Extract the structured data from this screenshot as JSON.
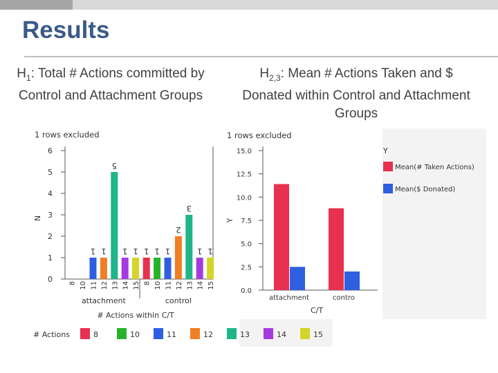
{
  "slide": {
    "title": "Results",
    "heading_left": {
      "h": "H",
      "sub": "1",
      "text": ": Total # Actions committed by Control and Attachment Groups"
    },
    "heading_right": {
      "h": "H",
      "sub": "2,3",
      "text": ": Mean # Actions Taken and $ Donated  within Control and Attachment Groups"
    }
  },
  "chart_data": [
    {
      "type": "bar",
      "note_label": "1 rows excluded",
      "ylabel": "N",
      "xlabel": "# Actions within C/T",
      "ylim": [
        0,
        6
      ],
      "yticks": [
        0,
        1,
        2,
        3,
        4,
        5,
        6
      ],
      "groups": [
        {
          "label": "attachment",
          "categories": [
            "8",
            "10",
            "11",
            "12",
            "13",
            "14",
            "15"
          ],
          "values": [
            0,
            0,
            1,
            1,
            5,
            1,
            1
          ]
        },
        {
          "label": "control",
          "categories": [
            "8",
            "10",
            "11",
            "12",
            "13",
            "14",
            "15"
          ],
          "values": [
            1,
            1,
            1,
            2,
            3,
            1,
            1
          ]
        }
      ],
      "legend": {
        "title": "# Actions",
        "items": [
          {
            "label": "8",
            "color": "#e8304f"
          },
          {
            "label": "10",
            "color": "#26b32b"
          },
          {
            "label": "11",
            "color": "#2e5fe0"
          },
          {
            "label": "12",
            "color": "#f07e26"
          },
          {
            "label": "13",
            "color": "#1fb589"
          },
          {
            "label": "14",
            "color": "#a53ae0"
          },
          {
            "label": "15",
            "color": "#d4d42a"
          }
        ]
      },
      "grid": false
    },
    {
      "type": "bar",
      "note_label": "1 rows excluded",
      "ylabel": "Y",
      "xlabel": "C/T",
      "ylim": [
        0,
        15
      ],
      "yticks": [
        "0.0",
        "2.5",
        "5.0",
        "7.5",
        "10.0",
        "12.5",
        "15.0"
      ],
      "categories": [
        "attachment",
        "contro"
      ],
      "series": [
        {
          "name": "Mean(# Taken Actions)",
          "color": "#e8304f",
          "values": [
            11.4,
            8.8
          ]
        },
        {
          "name": "Mean($ Donated)",
          "color": "#2e5fe0",
          "values": [
            2.5,
            2.0
          ]
        }
      ],
      "legend_title": "Y",
      "legend_position": "right",
      "grid": false
    }
  ]
}
